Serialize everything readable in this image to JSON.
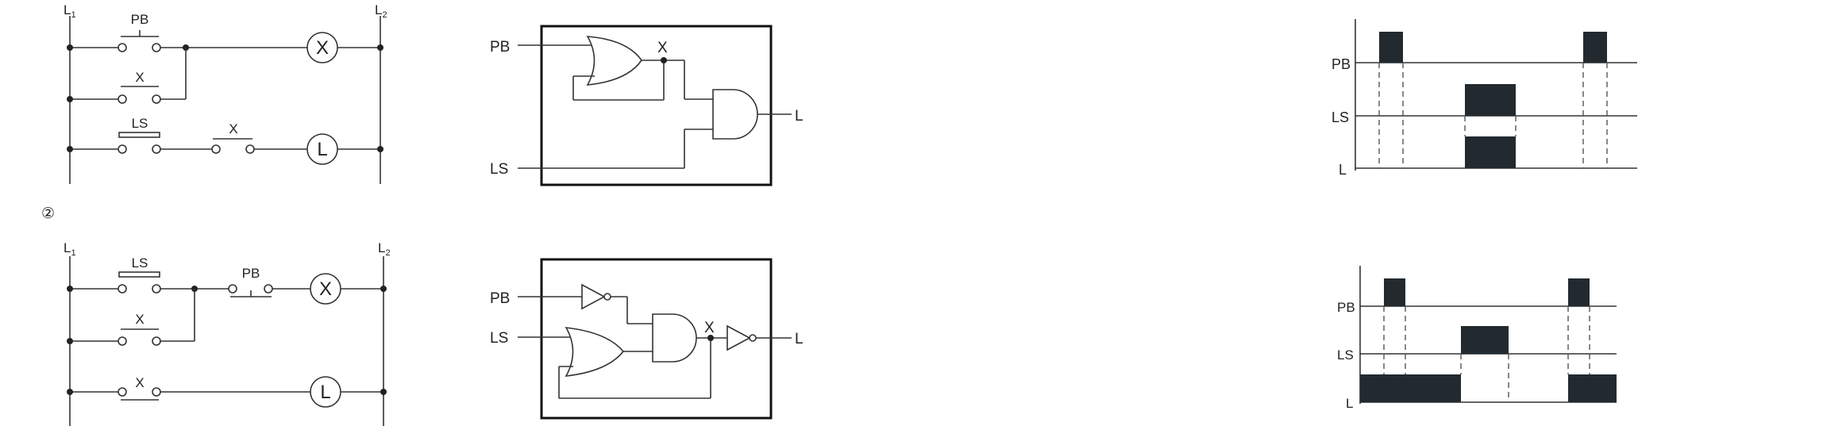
{
  "ladder1": {
    "rail_left": "L",
    "rail_left_sub": "1",
    "rail_right": "L",
    "rail_right_sub": "2",
    "contact_pb": "PB",
    "contact_x": "X",
    "contact_ls": "LS",
    "contact_x2": "X",
    "coil_x": "X",
    "coil_l": "L"
  },
  "ladder2": {
    "circled_number": "②",
    "rail_left": "L",
    "rail_left_sub": "1",
    "rail_right": "L",
    "rail_right_sub": "2",
    "contact_ls": "LS",
    "contact_pb": "PB",
    "contact_x": "X",
    "contact_x2": "X",
    "coil_x": "X",
    "coil_l": "L"
  },
  "logic1": {
    "input_pb": "PB",
    "input_ls": "LS",
    "node_x": "X",
    "output_l": "L"
  },
  "logic2": {
    "input_pb": "PB",
    "input_ls": "LS",
    "node_x": "X",
    "output_l": "L"
  },
  "timing1": {
    "signals": [
      "PB",
      "LS",
      "L"
    ],
    "colors": {
      "fill": "#222a30",
      "line": "#333333"
    }
  },
  "timing2": {
    "signals": [
      "PB",
      "LS",
      "L"
    ],
    "colors": {
      "fill": "#222a30",
      "line": "#333333"
    }
  }
}
